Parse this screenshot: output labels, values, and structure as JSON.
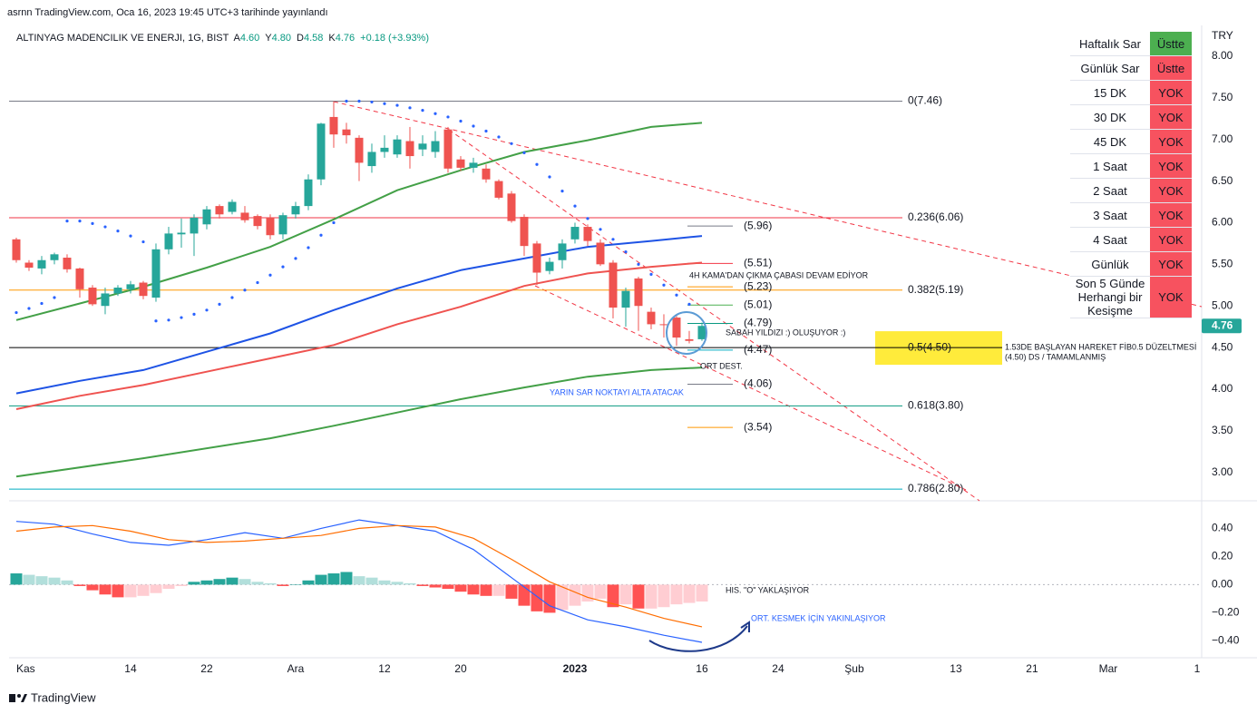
{
  "header": {
    "publisher": "asrnn TradingView.com, Oca 16, 2023 19:45 UTC+3 tarihinde yayınlandı",
    "symbol": "ALTINYAG MADENCILIK VE ENERJI, 1G, BIST",
    "ohlc": [
      {
        "key": "A",
        "value": "4.60"
      },
      {
        "key": "Y",
        "value": "4.80"
      },
      {
        "key": "D",
        "value": "4.58"
      },
      {
        "key": "K",
        "value": "4.76"
      }
    ],
    "change": "+0.18 (+3.93%)"
  },
  "status_table": {
    "rows": [
      [
        "Haftalık Sar",
        "Üstte"
      ],
      [
        "Günlük Sar",
        "Üstte"
      ],
      [
        "15 DK",
        "YOK"
      ],
      [
        "30 DK",
        "YOK"
      ],
      [
        "45 DK",
        "YOK"
      ],
      [
        "1 Saat",
        "YOK"
      ],
      [
        "2 Saat",
        "YOK"
      ],
      [
        "3 Saat",
        "YOK"
      ],
      [
        "4 Saat",
        "YOK"
      ],
      [
        "Günlük",
        "YOK"
      ],
      [
        "Son 5 Günde Herhangi bir Kesişme",
        "YOK"
      ]
    ],
    "status_colors": [
      "#4caf50",
      "#f7525f",
      "#f7525f",
      "#f7525f",
      "#f7525f",
      "#f7525f",
      "#f7525f",
      "#f7525f",
      "#f7525f",
      "#f7525f",
      "#f7525f"
    ]
  },
  "chart_data": [
    {
      "type": "candlestick",
      "currency": "TRY",
      "xlim": [
        -0.57,
        93.43
      ],
      "ylim": [
        2.67,
        8.37
      ],
      "yticks": [
        {
          "value": 8,
          "label": "8.00"
        },
        {
          "value": 7.5,
          "label": "7.50"
        },
        {
          "value": 7,
          "label": "7.00"
        },
        {
          "value": 6.5,
          "label": "6.50"
        },
        {
          "value": 6,
          "label": "6.00"
        },
        {
          "value": 5.5,
          "label": "5.50"
        },
        {
          "value": 5,
          "label": "5.00"
        },
        {
          "value": 4.5,
          "label": "4.50"
        },
        {
          "value": 4,
          "label": "4.00"
        },
        {
          "value": 3.5,
          "label": "3.50"
        },
        {
          "value": 3,
          "label": "3.00"
        }
      ],
      "up_color": "#26a69a",
      "down_color": "#ef5350",
      "candles": {
        "x": [
          0,
          1,
          2,
          3,
          4,
          5,
          6,
          7,
          8,
          9,
          10,
          11,
          12,
          13,
          14,
          15,
          16,
          17,
          18,
          19,
          20,
          21,
          22,
          23,
          24,
          25,
          26,
          27,
          28,
          29,
          30,
          31,
          32,
          33,
          34,
          35,
          36,
          37,
          38,
          39,
          40,
          41,
          42,
          43,
          44,
          45,
          46,
          47,
          48,
          49,
          50,
          51,
          52,
          53,
          54
        ],
        "open": [
          5.8,
          5.52,
          5.45,
          5.55,
          5.58,
          5.45,
          5.22,
          5.0,
          5.15,
          5.2,
          5.28,
          5.1,
          5.68,
          5.86,
          5.87,
          5.98,
          6.2,
          6.13,
          6.12,
          6.08,
          6.06,
          5.86,
          6.1,
          6.2,
          6.52,
          7.27,
          7.12,
          7.02,
          6.68,
          6.85,
          6.82,
          6.98,
          6.88,
          6.85,
          7.12,
          6.76,
          6.66,
          6.65,
          6.5,
          6.35,
          6.07,
          5.75,
          5.42,
          5.55,
          5.8,
          5.95,
          5.76,
          5.52,
          4.98,
          5.33,
          4.93,
          4.78,
          4.86,
          4.6,
          4.6
        ],
        "high": [
          5.82,
          5.55,
          5.6,
          5.64,
          5.62,
          5.46,
          5.25,
          5.22,
          5.25,
          5.3,
          5.3,
          5.75,
          5.95,
          6.05,
          6.1,
          6.2,
          6.22,
          6.28,
          6.2,
          6.1,
          6.1,
          6.12,
          6.25,
          6.58,
          7.2,
          7.46,
          7.2,
          7.05,
          6.95,
          7.05,
          7.05,
          7.15,
          7.05,
          7.1,
          7.15,
          6.8,
          6.78,
          6.7,
          6.52,
          6.38,
          6.1,
          5.78,
          5.58,
          5.8,
          6.0,
          5.98,
          5.8,
          5.55,
          5.22,
          5.35,
          4.98,
          4.9,
          4.88,
          4.7,
          4.8
        ],
        "low": [
          5.52,
          5.42,
          5.38,
          5.5,
          5.4,
          5.1,
          5.0,
          4.9,
          5.12,
          5.15,
          5.08,
          5.05,
          5.62,
          5.7,
          5.6,
          5.92,
          6.05,
          6.1,
          6.0,
          5.92,
          5.8,
          5.8,
          6.05,
          6.15,
          6.45,
          6.9,
          6.95,
          6.5,
          6.6,
          6.78,
          6.78,
          6.65,
          6.8,
          6.78,
          6.6,
          6.62,
          6.6,
          6.48,
          6.28,
          6.0,
          5.6,
          5.25,
          5.38,
          5.45,
          5.75,
          5.72,
          5.48,
          4.85,
          4.75,
          4.7,
          4.72,
          4.62,
          4.52,
          4.55,
          4.58
        ],
        "close": [
          5.55,
          5.46,
          5.55,
          5.62,
          5.44,
          5.2,
          5.02,
          5.15,
          5.22,
          5.26,
          5.12,
          5.68,
          5.87,
          5.88,
          6.06,
          6.16,
          6.1,
          6.25,
          6.03,
          5.96,
          5.85,
          6.09,
          6.2,
          6.52,
          7.19,
          7.06,
          7.05,
          6.72,
          6.85,
          6.9,
          7.0,
          6.8,
          6.95,
          6.98,
          6.65,
          6.66,
          6.72,
          6.52,
          6.3,
          6.02,
          5.72,
          5.4,
          5.53,
          5.75,
          5.95,
          5.78,
          5.5,
          4.98,
          5.18,
          5.0,
          4.78,
          4.77,
          4.62,
          4.58,
          4.76
        ]
      },
      "series": [
        {
          "style": "line",
          "color": "#43a047",
          "x": [
            0,
            5,
            10,
            15,
            20,
            25,
            30,
            35,
            40,
            45,
            50,
            54
          ],
          "values": [
            4.83,
            5.03,
            5.23,
            5.46,
            5.71,
            6.04,
            6.39,
            6.63,
            6.85,
            6.99,
            7.15,
            7.2
          ]
        },
        {
          "style": "line",
          "color": "#1e53e5",
          "x": [
            0,
            5,
            10,
            15,
            20,
            25,
            30,
            35,
            40,
            45,
            50,
            54
          ],
          "values": [
            3.95,
            4.1,
            4.23,
            4.45,
            4.67,
            4.95,
            5.21,
            5.43,
            5.57,
            5.71,
            5.78,
            5.84
          ]
        },
        {
          "style": "line",
          "color": "#ef5350",
          "x": [
            0,
            5,
            10,
            15,
            20,
            25,
            30,
            35,
            40,
            45,
            50,
            54
          ],
          "values": [
            3.76,
            3.92,
            4.05,
            4.21,
            4.37,
            4.53,
            4.78,
            4.99,
            5.24,
            5.39,
            5.47,
            5.52
          ]
        },
        {
          "style": "line",
          "color": "#43a047",
          "x": [
            0,
            10,
            20,
            25,
            30,
            35,
            40,
            45,
            50,
            54
          ],
          "values": [
            2.95,
            3.17,
            3.41,
            3.56,
            3.72,
            3.88,
            4.02,
            4.15,
            4.23,
            4.26
          ]
        },
        {
          "style": "dots",
          "color": "#2962ff",
          "x": [
            0,
            1,
            2,
            3,
            4,
            5,
            6,
            7,
            8,
            9,
            10,
            11,
            12,
            13,
            14,
            15,
            16,
            17,
            18,
            19,
            20,
            21,
            22,
            23,
            24,
            25,
            26,
            27,
            28,
            29,
            30,
            31,
            32,
            33,
            34,
            35,
            36,
            37,
            38,
            39,
            40,
            41,
            42,
            43,
            44,
            45,
            46,
            47,
            48,
            49,
            50,
            51,
            52,
            53
          ],
          "values": [
            4.92,
            4.97,
            5.03,
            5.1,
            6.02,
            6.02,
            5.99,
            5.95,
            5.9,
            5.84,
            5.77,
            4.82,
            4.83,
            4.86,
            4.9,
            4.95,
            5.02,
            5.1,
            5.19,
            5.28,
            5.37,
            5.47,
            5.57,
            5.7,
            5.85,
            6.0,
            7.46,
            7.46,
            7.45,
            7.43,
            7.41,
            7.38,
            7.35,
            7.31,
            7.27,
            7.22,
            7.16,
            7.1,
            7.03,
            6.95,
            6.84,
            6.7,
            6.55,
            6.38,
            6.2,
            6.05,
            5.92,
            5.8,
            5.65,
            5.5,
            5.38,
            5.25,
            5.13,
            5.02
          ]
        }
      ],
      "levels": [
        {
          "label": "0(7.46)",
          "value": 7.46,
          "color": "#787b86"
        },
        {
          "label": "0.236(6.06)",
          "value": 6.06,
          "color": "#f23645"
        },
        {
          "label": "0.382(5.19)",
          "value": 5.19,
          "color": "#ff9800"
        },
        {
          "label": "0.5(4.50)",
          "value": 4.5,
          "color": "#000000",
          "highlight": "#ffeb3b"
        },
        {
          "label": "0.618(3.80)",
          "value": 3.8,
          "color": "#089981"
        },
        {
          "label": "0.786(2.80)",
          "value": 2.8,
          "color": "#00acc1"
        }
      ],
      "pivots": [
        {
          "label": "(5.96)",
          "value": 5.96,
          "color": "#787b86"
        },
        {
          "label": "(5.51)",
          "value": 5.51,
          "color": "#f23645"
        },
        {
          "label": "(5.23)",
          "value": 5.23,
          "color": "#ff9800"
        },
        {
          "label": "(5.01)",
          "value": 5.01,
          "color": "#4caf50"
        },
        {
          "label": "(4.79)",
          "value": 4.79,
          "color": "#089981"
        },
        {
          "label": "(4.47)",
          "value": 4.47,
          "color": "#00acc1"
        },
        {
          "label": "(4.06)",
          "value": 4.06,
          "color": "#787b86"
        },
        {
          "label": "(3.54)",
          "value": 3.54,
          "color": "#ff9800"
        }
      ],
      "last_price": {
        "value": 4.76,
        "label": "4.76",
        "color": "#26a69a"
      },
      "annotations": [
        "4H KAMA'DAN ÇIKMA ÇABASI DEVAM EDİYOR",
        "SABAH YILDIZI :) OLUŞUYOR :)",
        "ORT DEST.",
        "YARIN SAR NOKTAYI ALTA ATACAK",
        "1.53DE BAŞLAYAN HAREKET FİB0.5  DÜZELTMESİ",
        "(4.50) DS / TAMAMLANMIŞ"
      ]
    },
    {
      "type": "macd",
      "xlim": [
        -0.57,
        93.43
      ],
      "ylim": [
        -0.52,
        0.59
      ],
      "xticks": [
        {
          "value": 0,
          "label": "Kas"
        },
        {
          "value": 9,
          "label": "14"
        },
        {
          "value": 15,
          "label": "22"
        },
        {
          "value": 22,
          "label": "Ara"
        },
        {
          "value": 29,
          "label": "12"
        },
        {
          "value": 35,
          "label": "20"
        },
        {
          "value": 44,
          "label": "2023"
        },
        {
          "value": 54,
          "label": "16"
        },
        {
          "value": 60,
          "label": "24"
        },
        {
          "value": 66,
          "label": "Şub"
        },
        {
          "value": 74,
          "label": "13"
        },
        {
          "value": 80,
          "label": "21"
        },
        {
          "value": 86,
          "label": "Mar"
        },
        {
          "value": 93,
          "label": "1"
        }
      ],
      "yticks": [
        {
          "value": 0.4,
          "label": "0.40"
        },
        {
          "value": 0.2,
          "label": "0.20"
        },
        {
          "value": 0,
          "label": "0.00"
        },
        {
          "value": -0.2,
          "label": "−0.20"
        },
        {
          "value": -0.4,
          "label": "−0.40"
        }
      ],
      "histogram": {
        "x": [
          0,
          1,
          2,
          3,
          4,
          5,
          6,
          7,
          8,
          9,
          10,
          11,
          12,
          13,
          14,
          15,
          16,
          17,
          18,
          19,
          20,
          21,
          22,
          23,
          24,
          25,
          26,
          27,
          28,
          29,
          30,
          31,
          32,
          33,
          34,
          35,
          36,
          37,
          38,
          39,
          40,
          41,
          42,
          43,
          44,
          45,
          46,
          47,
          48,
          49,
          50,
          51,
          52,
          53,
          54
        ],
        "values": [
          0.08,
          0.07,
          0.06,
          0.05,
          0.03,
          -0.01,
          -0.04,
          -0.07,
          -0.09,
          -0.09,
          -0.08,
          -0.06,
          -0.03,
          -0.01,
          0.02,
          0.03,
          0.04,
          0.05,
          0.04,
          0.02,
          0.01,
          -0.01,
          0.0,
          0.03,
          0.07,
          0.08,
          0.09,
          0.06,
          0.05,
          0.03,
          0.02,
          0.01,
          -0.01,
          -0.02,
          -0.03,
          -0.05,
          -0.07,
          -0.08,
          -0.08,
          -0.1,
          -0.15,
          -0.19,
          -0.2,
          -0.18,
          -0.15,
          -0.12,
          -0.1,
          -0.16,
          -0.14,
          -0.17,
          -0.17,
          -0.16,
          -0.14,
          -0.13,
          -0.12
        ],
        "colors": {
          "up_rising": "#26a69a",
          "up_falling": "#b2dfdb",
          "down_falling": "#ff5252",
          "down_rising": "#ffcdd2"
        }
      },
      "series": [
        {
          "color": "#2962ff",
          "x": [
            0,
            3,
            6,
            9,
            12,
            15,
            18,
            21,
            24,
            27,
            30,
            33,
            36,
            39,
            42,
            45,
            48,
            51,
            54
          ],
          "values": [
            0.45,
            0.43,
            0.36,
            0.3,
            0.28,
            0.32,
            0.37,
            0.33,
            0.4,
            0.46,
            0.42,
            0.38,
            0.25,
            0.05,
            -0.15,
            -0.25,
            -0.3,
            -0.36,
            -0.41
          ]
        },
        {
          "color": "#ff6d00",
          "x": [
            0,
            3,
            6,
            9,
            12,
            15,
            18,
            21,
            24,
            27,
            30,
            33,
            36,
            39,
            42,
            45,
            48,
            51,
            54
          ],
          "values": [
            0.38,
            0.41,
            0.42,
            0.38,
            0.32,
            0.3,
            0.31,
            0.33,
            0.35,
            0.4,
            0.42,
            0.41,
            0.33,
            0.18,
            0.02,
            -0.09,
            -0.16,
            -0.24,
            -0.3
          ]
        }
      ],
      "annotations": [
        "HIS. \"O\" YAKLAŞIYOR",
        "ORT. KESMEK İÇİN YAKINLAŞIYOR"
      ]
    }
  ],
  "footer": {
    "brand": "TradingView"
  }
}
